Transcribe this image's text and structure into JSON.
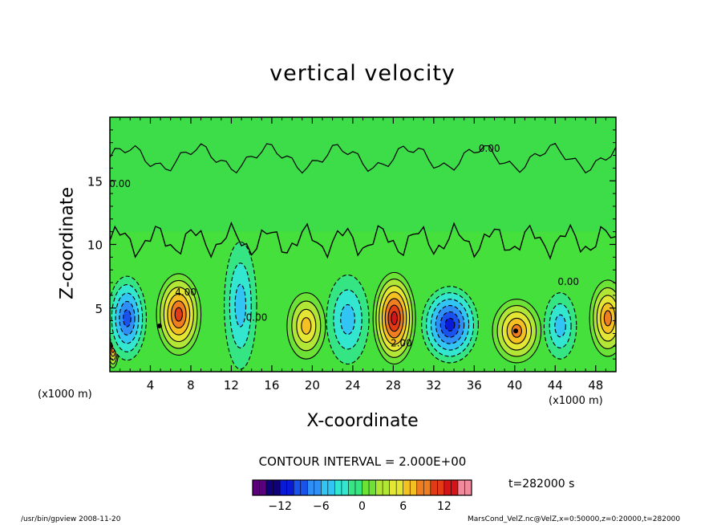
{
  "chart_data": {
    "type": "heatmap",
    "subtype": "filled-contour",
    "title": "vertical velocity",
    "xlabel": "X-coordinate",
    "ylabel": "Z-coordinate",
    "x_unit_label": "(x1000 m)",
    "z_unit_label": "(x1000 m)",
    "xlim": [
      0,
      50
    ],
    "ylim": [
      0,
      20
    ],
    "x_ticks": [
      4,
      8,
      12,
      16,
      20,
      24,
      28,
      32,
      36,
      40,
      44,
      48
    ],
    "y_ticks": [
      5,
      10,
      15
    ],
    "contour_interval_text": "CONTOUR INTERVAL = 2.000E+00",
    "contour_labels": [
      {
        "text": "4.00",
        "x": 7.5,
        "z": 6.0
      },
      {
        "text": "0.00",
        "x": 14.5,
        "z": 4.0
      },
      {
        "text": "0.00",
        "x": 37.5,
        "z": 17.3
      },
      {
        "text": "0.00",
        "x": 45.3,
        "z": 6.8
      },
      {
        "text": "0.00",
        "x": 1.0,
        "z": 14.5
      },
      {
        "text": "2.00",
        "x": 28.8,
        "z": 2.0
      }
    ],
    "extrema_markers": [
      {
        "x": 4.9,
        "z": 3.6
      },
      {
        "x": 40.1,
        "z": 3.2
      }
    ],
    "cells": [
      {
        "x": 0.3,
        "z": 2.1,
        "value": 11,
        "rx": 0.6,
        "rz": 1.8
      },
      {
        "x": 1.7,
        "z": 4.2,
        "value": -10,
        "rx": 1.9,
        "rz": 3.3
      },
      {
        "x": 6.8,
        "z": 4.5,
        "value": 11,
        "rx": 2.2,
        "rz": 3.2
      },
      {
        "x": 12.9,
        "z": 5.2,
        "value": -6,
        "rx": 1.6,
        "rz": 5.0
      },
      {
        "x": 19.4,
        "z": 3.6,
        "value": 7,
        "rx": 1.9,
        "rz": 2.6
      },
      {
        "x": 23.5,
        "z": 4.1,
        "value": -6,
        "rx": 2.1,
        "rz": 3.5
      },
      {
        "x": 28.1,
        "z": 4.2,
        "value": 13,
        "rx": 2.1,
        "rz": 3.6
      },
      {
        "x": 33.6,
        "z": 3.7,
        "value": -12,
        "rx": 2.8,
        "rz": 3.0
      },
      {
        "x": 40.2,
        "z": 3.2,
        "value": 9,
        "rx": 2.4,
        "rz": 2.5
      },
      {
        "x": 44.5,
        "z": 3.6,
        "value": -6,
        "rx": 1.6,
        "rz": 2.6
      },
      {
        "x": 49.2,
        "z": 4.2,
        "value": 10,
        "rx": 1.8,
        "rz": 3.0
      }
    ],
    "colorbar": {
      "min": -16,
      "max": 16,
      "ticks": [
        -12,
        -6,
        0,
        6,
        12
      ],
      "colors": [
        "#5a007a",
        "#10007a",
        "#0a1bd8",
        "#1a52ee",
        "#2e8ff6",
        "#32c4f2",
        "#33e6cf",
        "#35e584",
        "#6ce236",
        "#b2e636",
        "#e4e634",
        "#f4c022",
        "#ef7e20",
        "#e23b16",
        "#d61418",
        "#f08a9c"
      ]
    },
    "time_label": "t=282000 s"
  },
  "footer": {
    "left": "/usr/bin/gpview   2008-11-20",
    "right": "MarsCond_VelZ.nc@VelZ,x=0:50000,z=0:20000,t=282000"
  }
}
